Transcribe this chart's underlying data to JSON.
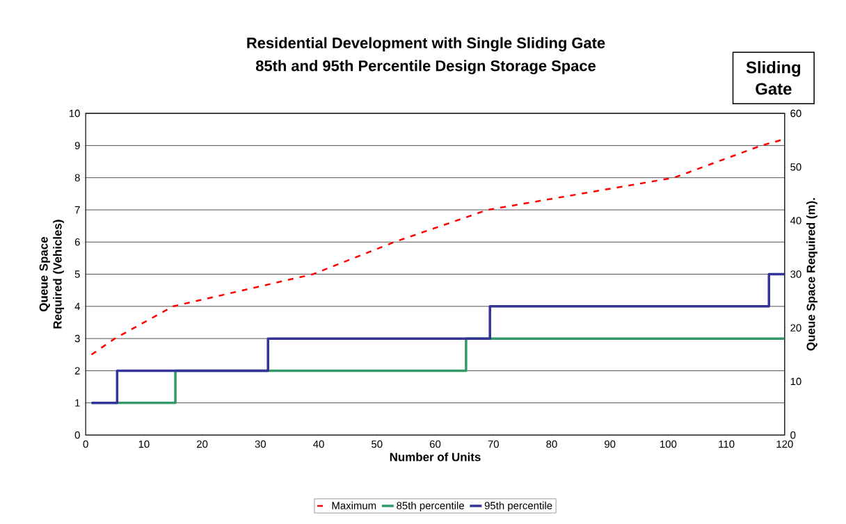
{
  "chart_data": {
    "type": "line",
    "title": "Residential Development with Single Sliding Gate",
    "subtitle": "85th and 95th Percentile Design Storage Space",
    "xlabel": "Number of Units",
    "ylabel": "Queue Space Required (Vehicles)",
    "y2label": "Queue Space Required (m).",
    "xlim": [
      0,
      120
    ],
    "xticks": [
      0,
      10,
      20,
      30,
      40,
      50,
      60,
      70,
      80,
      90,
      100,
      110,
      120
    ],
    "ylim": [
      0,
      10
    ],
    "yticks": [
      0,
      1,
      2,
      3,
      4,
      5,
      6,
      7,
      8,
      9,
      10
    ],
    "y2lim": [
      0,
      60
    ],
    "y2ticks": [
      0,
      10,
      20,
      30,
      40,
      50,
      60
    ],
    "grid": "y",
    "legend": "bottom",
    "marker": "none",
    "annotations": [
      "Sliding Gate"
    ],
    "series": [
      {
        "name": "Maximum",
        "line_style": "dashed",
        "color": "#ff0000",
        "x": [
          1,
          5,
          15,
          39,
          53,
          69,
          101,
          116,
          120
        ],
        "values": [
          2.5,
          3,
          4,
          5,
          6,
          7,
          8,
          9,
          9.2
        ]
      },
      {
        "name": "85th percentile",
        "type": "step",
        "line_style": "solid",
        "color": "#339966",
        "x": [
          1,
          15.4,
          65.3,
          120
        ],
        "values": [
          1,
          2,
          3,
          3
        ]
      },
      {
        "name": "95th percentile",
        "type": "step",
        "line_style": "solid",
        "color": "#333399",
        "x": [
          1,
          5.4,
          31.3,
          69.4,
          117.3,
          120
        ],
        "values": [
          1,
          2,
          3,
          4,
          5,
          5
        ]
      }
    ]
  }
}
